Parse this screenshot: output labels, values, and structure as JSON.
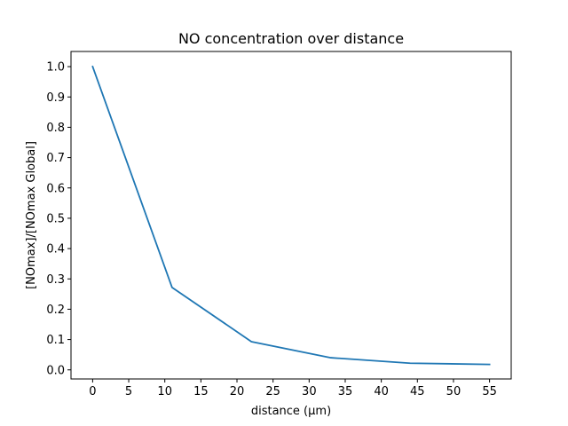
{
  "chart_data": {
    "type": "line",
    "title": "NO concentration over distance",
    "xlabel": "distance (μm)",
    "ylabel": "[NOmax]/[NOmax Global]",
    "xlim": [
      -3,
      58
    ],
    "ylim": [
      -0.03,
      1.05
    ],
    "xticks": [
      0,
      5,
      10,
      15,
      20,
      25,
      30,
      35,
      40,
      45,
      50,
      55
    ],
    "yticks": [
      0.0,
      0.1,
      0.2,
      0.3,
      0.4,
      0.5,
      0.6,
      0.7,
      0.8,
      0.9,
      1.0
    ],
    "grid": false,
    "series": [
      {
        "color": "#1f77b4",
        "x": [
          0,
          11,
          22,
          33,
          44,
          55
        ],
        "y": [
          1.0,
          0.272,
          0.093,
          0.04,
          0.022,
          0.018
        ]
      }
    ]
  }
}
